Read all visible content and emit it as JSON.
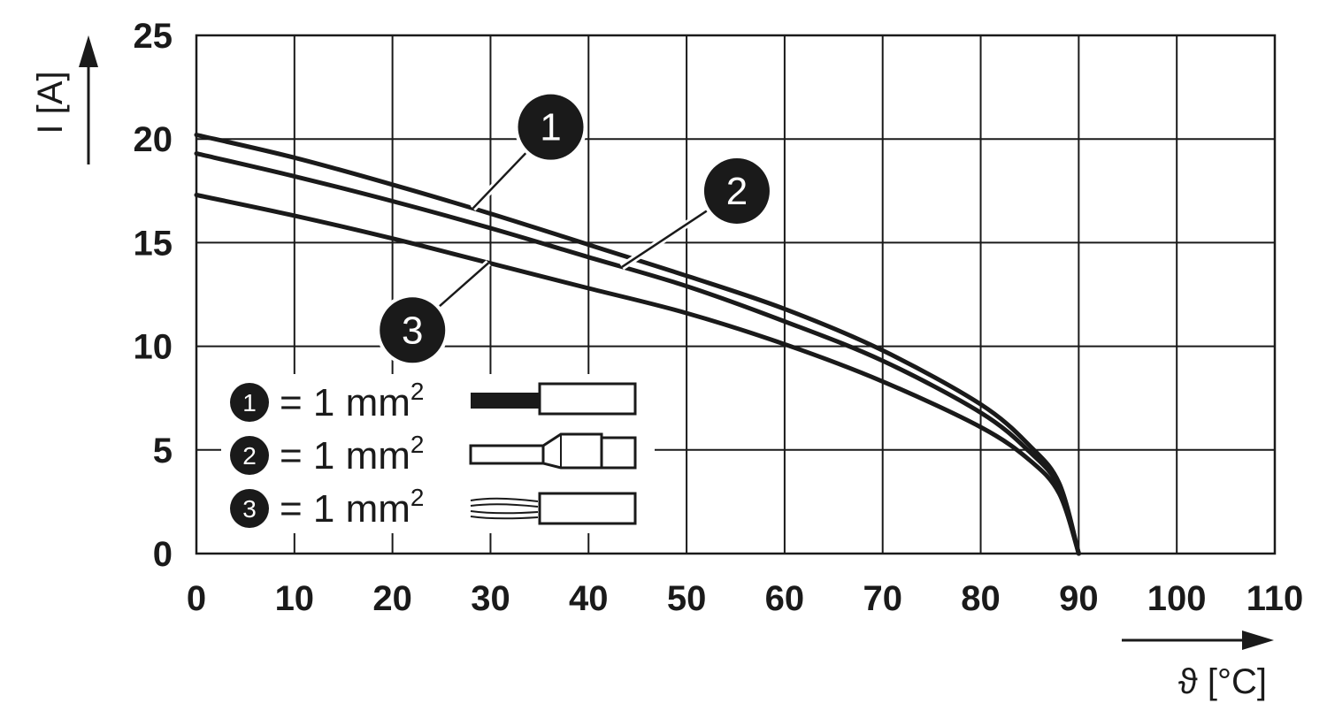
{
  "chart_data": {
    "type": "line",
    "xlabel": "ϑ [°C]",
    "ylabel": "I [A]",
    "xlim": [
      0,
      110
    ],
    "ylim": [
      0,
      25
    ],
    "x_ticks": [
      "0",
      "10",
      "20",
      "30",
      "40",
      "50",
      "60",
      "70",
      "80",
      "90",
      "100",
      "110"
    ],
    "y_ticks": [
      "0",
      "5",
      "10",
      "15",
      "20",
      "25"
    ],
    "grid": true,
    "legend_position": "bottom-left",
    "series": [
      {
        "name": "1 = 1 mm²",
        "marker": "1",
        "x": [
          0,
          10,
          20,
          30,
          40,
          50,
          60,
          70,
          80,
          85,
          88,
          90
        ],
        "y": [
          20.2,
          19.1,
          17.8,
          16.4,
          14.9,
          13.4,
          11.8,
          9.8,
          7.2,
          5.2,
          3.4,
          0
        ]
      },
      {
        "name": "2 = 1 mm²",
        "marker": "2",
        "x": [
          0,
          10,
          20,
          30,
          40,
          50,
          60,
          70,
          80,
          85,
          88,
          90
        ],
        "y": [
          19.3,
          18.2,
          17.0,
          15.7,
          14.3,
          12.9,
          11.2,
          9.3,
          6.8,
          4.9,
          3.2,
          0
        ]
      },
      {
        "name": "3 = 1 mm²",
        "marker": "3",
        "x": [
          0,
          10,
          20,
          30,
          40,
          50,
          60,
          70,
          80,
          85,
          88,
          90
        ],
        "y": [
          17.3,
          16.3,
          15.2,
          14.0,
          12.8,
          11.6,
          10.1,
          8.3,
          6.1,
          4.5,
          2.9,
          0
        ]
      }
    ],
    "callouts": [
      {
        "label": "1",
        "series": 0,
        "at_x": 28.2
      },
      {
        "label": "2",
        "series": 1,
        "at_x": 43.4
      },
      {
        "label": "3",
        "series": 2,
        "at_x": 29.8
      }
    ]
  }
}
